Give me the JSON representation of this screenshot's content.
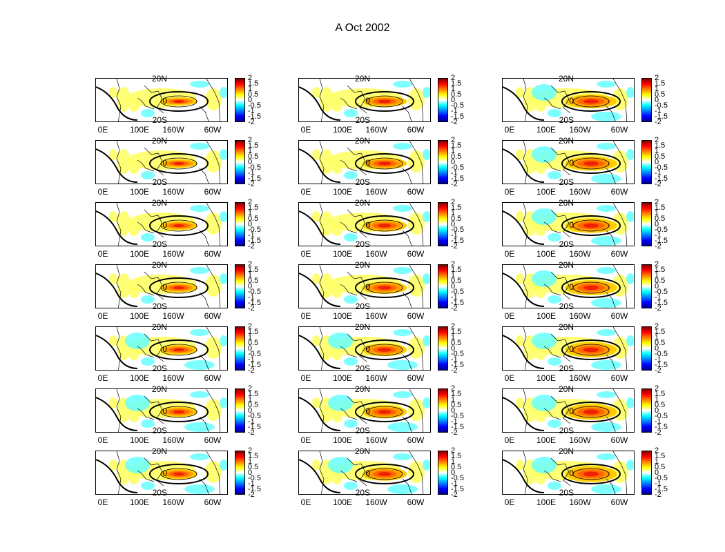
{
  "title": "A Oct 2002",
  "colormap": [
    "#00008f",
    "#0000ff",
    "#0080ff",
    "#00ffff",
    "#ffffff",
    "#ffff00",
    "#ff8000",
    "#ff0000",
    "#800000"
  ],
  "y_ticks": [
    "20N",
    "0",
    "20S"
  ],
  "x_ticks": [
    "0E",
    "100E",
    "160W",
    "60W"
  ],
  "colorbar_ticks": [
    "2",
    "1.5",
    "1",
    "0.5",
    "0",
    "-0.5",
    "-1",
    "-1.5",
    "-2"
  ],
  "panels": [
    {
      "id": "r1c1"
    },
    {
      "id": "r1c2"
    },
    {
      "id": "r1c3"
    },
    {
      "id": "r2c1"
    },
    {
      "id": "r2c2"
    },
    {
      "id": "r2c3"
    },
    {
      "id": "r3c1"
    },
    {
      "id": "r3c2"
    },
    {
      "id": "r3c3"
    },
    {
      "id": "r4c1"
    },
    {
      "id": "r4c2"
    },
    {
      "id": "r4c3"
    },
    {
      "id": "r5c1"
    },
    {
      "id": "r5c2"
    },
    {
      "id": "r5c3"
    },
    {
      "id": "r6c1"
    },
    {
      "id": "r6c2"
    },
    {
      "id": "r6c3"
    },
    {
      "id": "r7c1"
    },
    {
      "id": "r7c2"
    },
    {
      "id": "r7c3"
    }
  ]
}
